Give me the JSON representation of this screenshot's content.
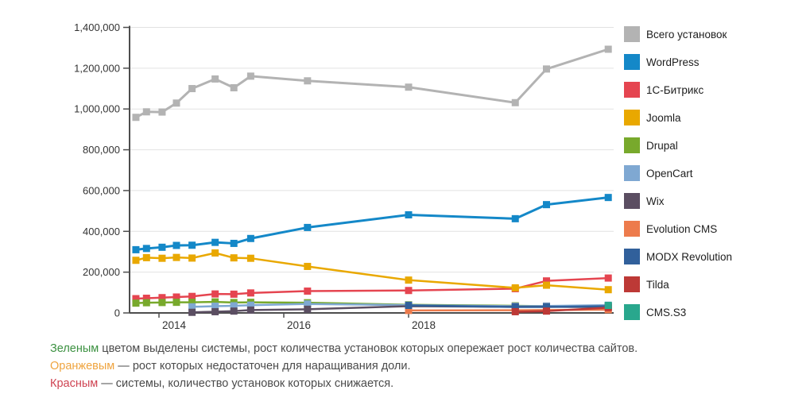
{
  "chart_data": {
    "type": "line",
    "title": "",
    "xlabel": "",
    "ylabel": "",
    "grid": true,
    "legend_position": "right",
    "ylim": [
      0,
      1400000
    ],
    "xlim": [
      2013.5,
      2021.35
    ],
    "x_unit": "year",
    "x": [
      2013.63,
      2013.8,
      2014.05,
      2014.28,
      2014.53,
      2014.9,
      2015.2,
      2015.47,
      2016.38,
      2018.0,
      2019.71,
      2020.21,
      2021.2
    ],
    "x_ticks": [
      {
        "year": 2014,
        "label": "2014"
      },
      {
        "year": 2016,
        "label": "2016"
      },
      {
        "year": 2018,
        "label": "2018"
      }
    ],
    "y_ticks": [
      {
        "value": 0,
        "label": "0"
      },
      {
        "value": 200000,
        "label": "200,000"
      },
      {
        "value": 400000,
        "label": "400,000"
      },
      {
        "value": 600000,
        "label": "600,000"
      },
      {
        "value": 800000,
        "label": "800,000"
      },
      {
        "value": 1000000,
        "label": "1,000,000"
      },
      {
        "value": 1200000,
        "label": "1,200,000"
      },
      {
        "value": 1400000,
        "label": "1,400,000"
      }
    ],
    "series": [
      {
        "key": "total-installs",
        "name": "Всего установок",
        "color": "#b3b3b3",
        "width": 3,
        "values": [
          959000,
          986000,
          985000,
          1029000,
          1100000,
          1147000,
          1104000,
          1161000,
          1138000,
          1107000,
          1031000,
          1196000,
          1293000
        ]
      },
      {
        "key": "wordpress",
        "name": "WordPress",
        "color": "#1488c8",
        "width": 3,
        "values": [
          310000,
          316000,
          322000,
          331000,
          332000,
          346000,
          341000,
          365000,
          419000,
          481000,
          462000,
          531000,
          566000
        ]
      },
      {
        "key": "bitrix",
        "name": "1С-Битрикс",
        "color": "#e54550",
        "width": 2.5,
        "values": [
          70000,
          72000,
          75000,
          78000,
          81000,
          93000,
          92000,
          98000,
          107000,
          110000,
          119000,
          157000,
          171000
        ]
      },
      {
        "key": "joomla",
        "name": "Joomla",
        "color": "#e9a800",
        "width": 2.5,
        "values": [
          258000,
          271000,
          268000,
          272000,
          269000,
          294000,
          270000,
          268000,
          228000,
          161000,
          123000,
          136000,
          114000
        ]
      },
      {
        "key": "drupal",
        "name": "Drupal",
        "color": "#78a92c",
        "width": 2.5,
        "values": [
          48000,
          50000,
          51000,
          52000,
          52000,
          54000,
          51000,
          52000,
          50000,
          40000,
          35000,
          33000,
          32000
        ]
      },
      {
        "key": "opencart",
        "name": "OpenCart",
        "color": "#7fa8d2",
        "width": 2.5,
        "values": [
          null,
          null,
          null,
          null,
          30000,
          33000,
          35000,
          38000,
          44000,
          38000,
          33000,
          34000,
          38000
        ]
      },
      {
        "key": "wix",
        "name": "Wix",
        "color": "#5b4e62",
        "width": 2.5,
        "values": [
          null,
          null,
          null,
          null,
          3000,
          6000,
          9000,
          14000,
          18000,
          33000,
          30000,
          30000,
          28000
        ]
      },
      {
        "key": "evolution-cms",
        "name": "Evolution CMS",
        "color": "#ed7b4c",
        "width": 2.5,
        "values": [
          null,
          null,
          null,
          null,
          null,
          null,
          null,
          null,
          null,
          12000,
          13000,
          14000,
          16000
        ]
      },
      {
        "key": "modx-revolution",
        "name": "MODX Revolution",
        "color": "#31609b",
        "width": 2.5,
        "values": [
          null,
          null,
          null,
          null,
          null,
          null,
          null,
          null,
          null,
          37000,
          29000,
          29000,
          33000
        ]
      },
      {
        "key": "tilda",
        "name": "Tilda",
        "color": "#bd3936",
        "width": 2.5,
        "values": [
          null,
          null,
          null,
          null,
          null,
          null,
          null,
          null,
          null,
          null,
          6000,
          9000,
          26000
        ]
      },
      {
        "key": "cms-s3",
        "name": "CMS.S3",
        "color": "#29a78d",
        "width": 2.5,
        "values": [
          null,
          null,
          null,
          null,
          null,
          null,
          null,
          null,
          null,
          null,
          null,
          null,
          37000
        ]
      }
    ]
  },
  "footnotes": [
    {
      "lead": "Зеленым",
      "lead_color": "#3c9141",
      "text": " цветом выделены системы, рост количества установок которых опережает рост количества сайтов."
    },
    {
      "lead": "Оранжевым",
      "lead_color": "#efa43f",
      "text": " — рост которых недостаточен для наращивания доли."
    },
    {
      "lead": "Красным",
      "lead_color": "#cf4352",
      "text": " — системы, количество установок которых снижается."
    }
  ],
  "style": {
    "axis_color": "#4d4d4d",
    "grid_color": "#e2e2e2",
    "tick_label_color": "#333333"
  }
}
